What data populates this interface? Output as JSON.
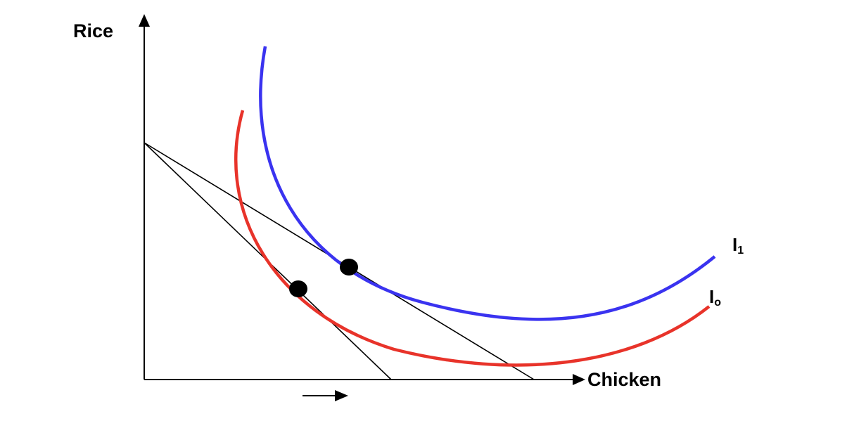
{
  "axes": {
    "y_label": "Rice",
    "x_label": "Chicken"
  },
  "curves": {
    "i1": {
      "label": "I",
      "subscript": "1",
      "color": "#3a33f0"
    },
    "i0": {
      "label": "I",
      "subscript": "o",
      "color": "#e8332a"
    }
  },
  "budget_lines": {
    "color": "#000000"
  },
  "tangency_points": {
    "color": "#000000"
  },
  "shift_arrow": {
    "direction": "right"
  }
}
